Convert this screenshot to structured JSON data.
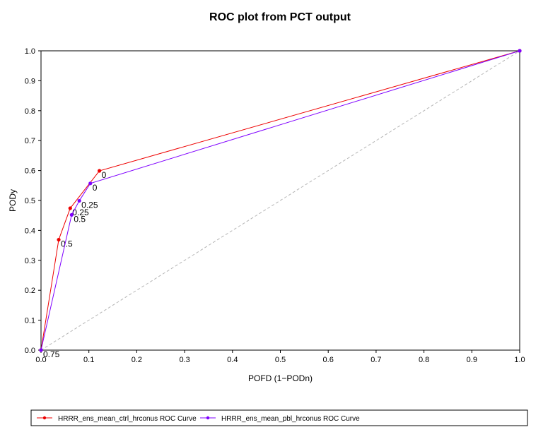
{
  "chart_data": {
    "type": "line",
    "title": "ROC plot from PCT output",
    "xlabel": "POFD (1−PODn)",
    "ylabel": "PODy",
    "xlim": [
      0,
      1
    ],
    "ylim": [
      0,
      1
    ],
    "x_ticks": [
      "0.0",
      "0.1",
      "0.2",
      "0.3",
      "0.4",
      "0.5",
      "0.6",
      "0.7",
      "0.8",
      "0.9",
      "1.0"
    ],
    "y_ticks": [
      "0.0",
      "0.1",
      "0.2",
      "0.3",
      "0.4",
      "0.5",
      "0.6",
      "0.7",
      "0.8",
      "0.9",
      "1.0"
    ],
    "grid": false,
    "reference_line": {
      "x": [
        0,
        1
      ],
      "y": [
        0,
        1
      ],
      "style": "dashed",
      "color": "#b5b5b5"
    },
    "legend_position": "bottom",
    "series": [
      {
        "name": "HRRR_ens_mean_ctrl_hrconus ROC Curve",
        "color": "#ee0000",
        "x": [
          0.0,
          0.037,
          0.061,
          0.122,
          1.0
        ],
        "y": [
          0.0,
          0.369,
          0.474,
          0.599,
          1.0
        ],
        "labels": [
          "0.75",
          "0.5",
          "0.25",
          "0",
          ""
        ]
      },
      {
        "name": "HRRR_ens_mean_pbl_hrconus ROC Curve",
        "color": "#7f00ff",
        "x": [
          0.0,
          0.064,
          0.08,
          0.103,
          1.0
        ],
        "y": [
          0.0,
          0.452,
          0.499,
          0.557,
          1.0
        ],
        "labels": [
          "0.75",
          "0.5",
          "0.25",
          "0",
          ""
        ]
      }
    ]
  }
}
